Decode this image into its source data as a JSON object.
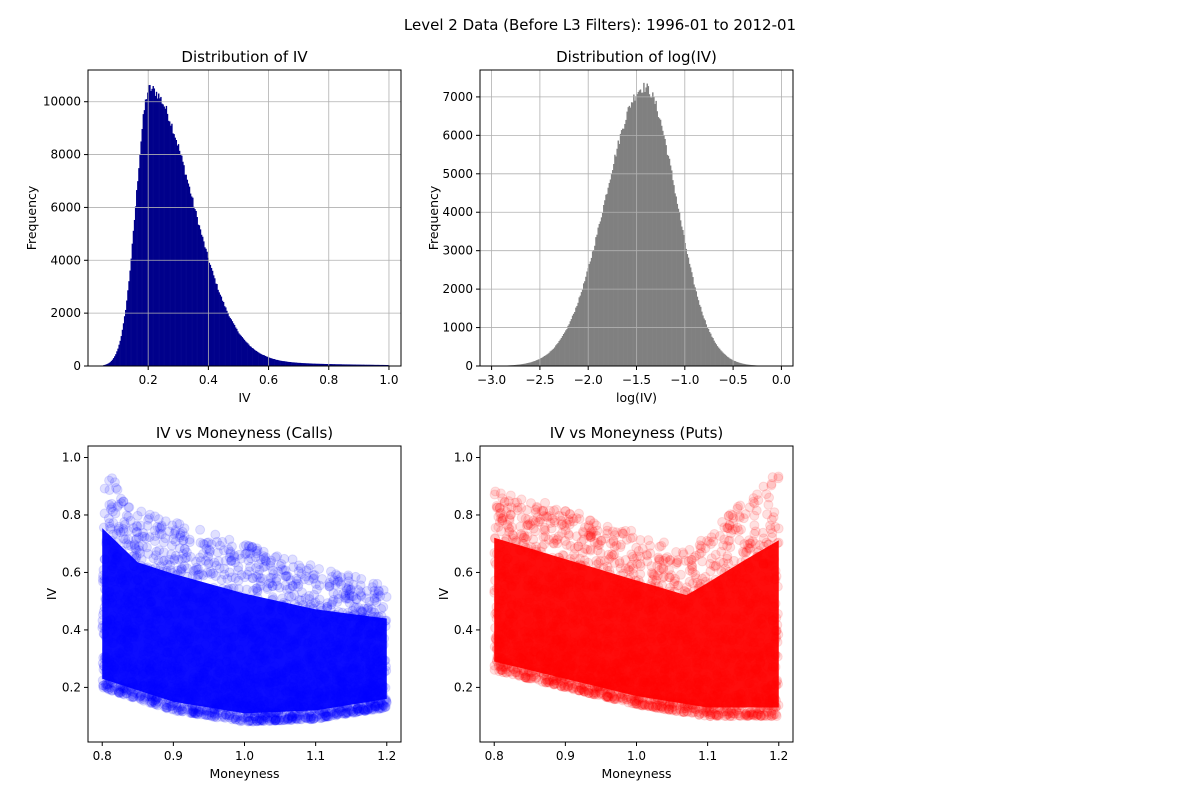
{
  "figure": {
    "suptitle": "Level 2 Data (Before L3 Filters): 1996-01 to 2012-01"
  },
  "chart_data": [
    {
      "id": "iv_hist",
      "type": "bar",
      "title": "Distribution of IV",
      "xlabel": "IV",
      "ylabel": "Frequency",
      "xlim": [
        0.0,
        1.04
      ],
      "ylim": [
        0,
        11200
      ],
      "xticks": [
        "0.2",
        "0.4",
        "0.6",
        "0.8",
        "1.0"
      ],
      "yticks": [
        "0",
        "2000",
        "4000",
        "6000",
        "8000",
        "10000"
      ],
      "color": "#00008b",
      "grid": true,
      "distribution": {
        "kind": "lognormal_peak",
        "x_start": 0.05,
        "x_end": 1.0,
        "peak_x": 0.205,
        "peak_value": 10500,
        "rise_width": 0.045,
        "decay_a": 0.28,
        "decay_b": 0.2,
        "tail_weight": 0.05,
        "tail_length": 0.3
      }
    },
    {
      "id": "logiv_hist",
      "type": "bar",
      "title": "Distribution of log(IV)",
      "xlabel": "log(IV)",
      "ylabel": "Frequency",
      "xlim": [
        -3.12,
        0.12
      ],
      "ylim": [
        0,
        7700
      ],
      "xticks": [
        "−3.0",
        "−2.5",
        "−2.0",
        "−1.5",
        "−1.0",
        "−0.5",
        "0.0"
      ],
      "yticks": [
        "0",
        "1000",
        "2000",
        "3000",
        "4000",
        "5000",
        "6000",
        "7000"
      ],
      "color": "#808080",
      "grid": true,
      "distribution": {
        "kind": "skewed_gaussian",
        "x_start": -3.0,
        "x_end": 0.0,
        "peak_x": -1.42,
        "peak_value": 7250,
        "sigma_left": 0.4,
        "sigma_right": 0.33
      }
    },
    {
      "id": "calls_scatter",
      "type": "scatter",
      "title": "IV vs Moneyness (Calls)",
      "xlabel": "Moneyness",
      "ylabel": "IV",
      "xlim": [
        0.78,
        1.22
      ],
      "ylim": [
        0.01,
        1.04
      ],
      "xticks": [
        "0.8",
        "0.9",
        "1.0",
        "1.1",
        "1.2"
      ],
      "yticks": [
        "0.2",
        "0.4",
        "0.6",
        "0.8",
        "1.0"
      ],
      "color": "#0000ff",
      "alpha": 0.1,
      "grid": false,
      "envelope": {
        "x_range": [
          0.8,
          1.2
        ],
        "lower": [
          [
            0.8,
            0.2
          ],
          [
            0.9,
            0.12
          ],
          [
            1.0,
            0.08
          ],
          [
            1.1,
            0.09
          ],
          [
            1.2,
            0.13
          ]
        ],
        "upper": [
          [
            0.8,
            0.97
          ],
          [
            0.85,
            0.82
          ],
          [
            0.9,
            0.78
          ],
          [
            1.0,
            0.7
          ],
          [
            1.1,
            0.62
          ],
          [
            1.2,
            0.56
          ]
        ]
      }
    },
    {
      "id": "puts_scatter",
      "type": "scatter",
      "title": "IV vs Moneyness (Puts)",
      "xlabel": "Moneyness",
      "ylabel": "IV",
      "xlim": [
        0.78,
        1.22
      ],
      "ylim": [
        0.01,
        1.04
      ],
      "xticks": [
        "0.8",
        "0.9",
        "1.0",
        "1.1",
        "1.2"
      ],
      "yticks": [
        "0.2",
        "0.4",
        "0.6",
        "0.8",
        "1.0"
      ],
      "color": "#ff0000",
      "alpha": 0.1,
      "grid": false,
      "envelope": {
        "x_range": [
          0.8,
          1.2
        ],
        "lower": [
          [
            0.8,
            0.26
          ],
          [
            0.9,
            0.2
          ],
          [
            1.0,
            0.14
          ],
          [
            1.1,
            0.1
          ],
          [
            1.2,
            0.1
          ]
        ],
        "upper": [
          [
            0.8,
            0.9
          ],
          [
            0.9,
            0.82
          ],
          [
            1.0,
            0.74
          ],
          [
            1.07,
            0.68
          ],
          [
            1.15,
            0.85
          ],
          [
            1.2,
            0.95
          ]
        ]
      }
    }
  ]
}
